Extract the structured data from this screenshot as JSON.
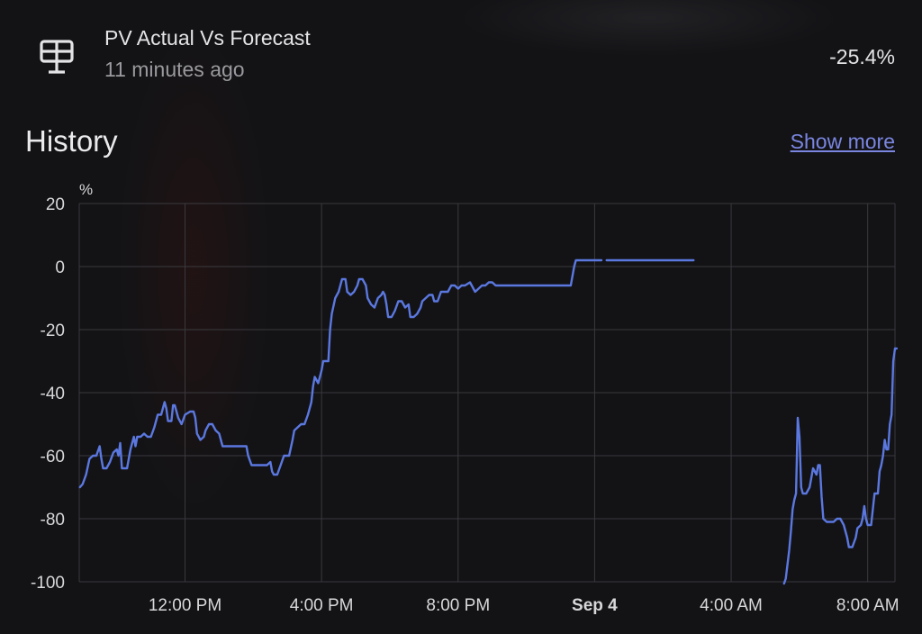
{
  "entity": {
    "name": "PV Actual Vs Forecast",
    "last_changed": "11 minutes ago",
    "state": "-25.4%",
    "icon": "solar-panel-icon"
  },
  "history": {
    "title": "History",
    "show_more_label": "Show more"
  },
  "colors": {
    "line": "#5b78e0",
    "grid": "#3a3a3e",
    "link": "#7a86e0"
  },
  "chart_data": {
    "type": "line",
    "title": "",
    "xlabel": "",
    "ylabel": "%",
    "ylim": [
      -100,
      20
    ],
    "yticks": [
      20,
      0,
      -20,
      -40,
      -60,
      -80,
      -100
    ],
    "x_unit": "hours since Sep 3 12:00 AM",
    "xlim": [
      8.9,
      32.8
    ],
    "xticks": [
      {
        "label": "12:00 PM",
        "x": 12,
        "bold": false
      },
      {
        "label": "4:00 PM",
        "x": 16,
        "bold": false
      },
      {
        "label": "8:00 PM",
        "x": 20,
        "bold": false
      },
      {
        "label": "Sep 4",
        "x": 24,
        "bold": true
      },
      {
        "label": "4:00 AM",
        "x": 28,
        "bold": false
      },
      {
        "label": "8:00 AM",
        "x": 32,
        "bold": false
      }
    ],
    "grid": true,
    "series": [
      {
        "name": "",
        "segments": [
          [
            [
              8.92,
              -70
            ],
            [
              9.0,
              -69
            ],
            [
              9.1,
              -66
            ],
            [
              9.2,
              -61
            ],
            [
              9.3,
              -60
            ],
            [
              9.4,
              -60
            ],
            [
              9.5,
              -57
            ],
            [
              9.55,
              -61
            ],
            [
              9.6,
              -64
            ],
            [
              9.7,
              -64
            ],
            [
              9.8,
              -62
            ],
            [
              9.9,
              -59
            ],
            [
              10.0,
              -58
            ],
            [
              10.05,
              -60
            ],
            [
              10.1,
              -56
            ],
            [
              10.15,
              -64
            ],
            [
              10.3,
              -64
            ],
            [
              10.4,
              -58
            ],
            [
              10.5,
              -54
            ],
            [
              10.55,
              -57
            ],
            [
              10.6,
              -54
            ],
            [
              10.7,
              -54
            ],
            [
              10.8,
              -53
            ],
            [
              10.9,
              -54
            ],
            [
              11.0,
              -54
            ],
            [
              11.1,
              -51
            ],
            [
              11.2,
              -47
            ],
            [
              11.3,
              -47
            ],
            [
              11.4,
              -43
            ],
            [
              11.45,
              -45
            ],
            [
              11.5,
              -49
            ],
            [
              11.6,
              -49
            ],
            [
              11.65,
              -44
            ],
            [
              11.7,
              -44
            ],
            [
              11.8,
              -48
            ],
            [
              11.9,
              -50
            ],
            [
              12.0,
              -47
            ],
            [
              12.15,
              -46
            ],
            [
              12.25,
              -46
            ],
            [
              12.3,
              -48
            ],
            [
              12.35,
              -53
            ],
            [
              12.45,
              -55
            ],
            [
              12.55,
              -54
            ],
            [
              12.6,
              -52
            ],
            [
              12.7,
              -50
            ],
            [
              12.8,
              -50
            ],
            [
              12.9,
              -52
            ],
            [
              13.0,
              -53
            ],
            [
              13.1,
              -57
            ],
            [
              13.5,
              -57
            ],
            [
              13.7,
              -57
            ],
            [
              13.8,
              -57
            ],
            [
              13.85,
              -60
            ],
            [
              13.95,
              -63
            ],
            [
              14.2,
              -63
            ],
            [
              14.4,
              -63
            ],
            [
              14.5,
              -62
            ],
            [
              14.55,
              -65
            ],
            [
              14.6,
              -66
            ],
            [
              14.7,
              -66
            ],
            [
              14.8,
              -63
            ],
            [
              14.9,
              -60
            ],
            [
              15.05,
              -60
            ],
            [
              15.15,
              -55
            ],
            [
              15.2,
              -52
            ],
            [
              15.3,
              -51
            ],
            [
              15.4,
              -50
            ],
            [
              15.5,
              -50
            ],
            [
              15.6,
              -47
            ],
            [
              15.7,
              -43
            ],
            [
              15.75,
              -38
            ],
            [
              15.8,
              -35
            ],
            [
              15.9,
              -37
            ],
            [
              16.0,
              -33
            ],
            [
              16.05,
              -30
            ],
            [
              16.1,
              -30
            ],
            [
              16.2,
              -30
            ],
            [
              16.25,
              -20
            ],
            [
              16.3,
              -15
            ],
            [
              16.4,
              -10
            ],
            [
              16.5,
              -8
            ],
            [
              16.6,
              -4
            ],
            [
              16.7,
              -4
            ],
            [
              16.75,
              -8
            ],
            [
              16.85,
              -9
            ],
            [
              16.95,
              -8
            ],
            [
              17.05,
              -6
            ],
            [
              17.1,
              -4
            ],
            [
              17.2,
              -4
            ],
            [
              17.3,
              -6
            ],
            [
              17.35,
              -10
            ],
            [
              17.45,
              -12
            ],
            [
              17.55,
              -13
            ],
            [
              17.65,
              -10
            ],
            [
              17.75,
              -9
            ],
            [
              17.8,
              -8
            ],
            [
              17.85,
              -9
            ],
            [
              17.9,
              -12
            ],
            [
              17.95,
              -16
            ],
            [
              18.05,
              -16
            ],
            [
              18.15,
              -14
            ],
            [
              18.25,
              -11
            ],
            [
              18.35,
              -11
            ],
            [
              18.45,
              -13
            ],
            [
              18.55,
              -12
            ],
            [
              18.6,
              -16
            ],
            [
              18.7,
              -16
            ],
            [
              18.8,
              -15
            ],
            [
              18.9,
              -13
            ],
            [
              18.95,
              -11
            ],
            [
              19.05,
              -10
            ],
            [
              19.15,
              -9
            ],
            [
              19.25,
              -9
            ],
            [
              19.3,
              -11
            ],
            [
              19.4,
              -11
            ],
            [
              19.5,
              -8
            ],
            [
              19.6,
              -8
            ],
            [
              19.7,
              -8
            ],
            [
              19.8,
              -6
            ],
            [
              19.9,
              -6
            ],
            [
              20.0,
              -7
            ],
            [
              20.1,
              -6
            ],
            [
              20.2,
              -6
            ],
            [
              20.35,
              -5
            ],
            [
              20.5,
              -8
            ],
            [
              20.6,
              -7
            ],
            [
              20.7,
              -6
            ],
            [
              20.8,
              -6
            ],
            [
              20.9,
              -5
            ],
            [
              21.0,
              -5
            ],
            [
              21.1,
              -6
            ],
            [
              21.3,
              -6
            ],
            [
              21.5,
              -6
            ],
            [
              22.0,
              -6
            ],
            [
              22.5,
              -6
            ],
            [
              23.0,
              -6
            ],
            [
              23.3,
              -6
            ],
            [
              23.4,
              0
            ],
            [
              23.45,
              2
            ],
            [
              23.6,
              2
            ],
            [
              24.2,
              2
            ]
          ],
          [
            [
              24.35,
              2
            ],
            [
              25.0,
              2
            ],
            [
              26.0,
              2
            ],
            [
              26.9,
              2
            ]
          ],
          [
            [
              29.55,
              -101
            ],
            [
              29.6,
              -99
            ],
            [
              29.7,
              -90
            ],
            [
              29.75,
              -84
            ],
            [
              29.8,
              -77
            ],
            [
              29.85,
              -74
            ],
            [
              29.9,
              -72
            ],
            [
              29.95,
              -48
            ],
            [
              30.0,
              -54
            ],
            [
              30.05,
              -70
            ],
            [
              30.1,
              -72
            ],
            [
              30.2,
              -72
            ],
            [
              30.3,
              -70
            ],
            [
              30.4,
              -64
            ],
            [
              30.5,
              -66
            ],
            [
              30.55,
              -63
            ],
            [
              30.6,
              -63
            ],
            [
              30.65,
              -73
            ],
            [
              30.7,
              -80
            ],
            [
              30.8,
              -81
            ],
            [
              30.9,
              -81
            ],
            [
              31.0,
              -81
            ],
            [
              31.1,
              -80
            ],
            [
              31.2,
              -80
            ],
            [
              31.3,
              -82
            ],
            [
              31.4,
              -86
            ],
            [
              31.45,
              -89
            ],
            [
              31.55,
              -89
            ],
            [
              31.65,
              -86
            ],
            [
              31.7,
              -83
            ],
            [
              31.8,
              -82
            ],
            [
              31.85,
              -80
            ],
            [
              31.9,
              -76
            ],
            [
              31.95,
              -80
            ],
            [
              32.0,
              -82
            ],
            [
              32.1,
              -82
            ],
            [
              32.2,
              -72
            ],
            [
              32.3,
              -72
            ],
            [
              32.35,
              -65
            ],
            [
              32.4,
              -63
            ],
            [
              32.45,
              -60
            ],
            [
              32.5,
              -55
            ],
            [
              32.55,
              -58
            ],
            [
              32.6,
              -58
            ],
            [
              32.65,
              -50
            ],
            [
              32.7,
              -47
            ],
            [
              32.75,
              -30
            ],
            [
              32.8,
              -26
            ],
            [
              32.85,
              -26
            ]
          ]
        ]
      }
    ]
  }
}
